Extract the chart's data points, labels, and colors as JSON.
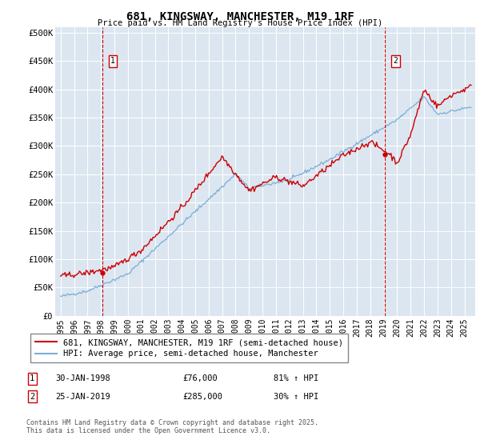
{
  "title": "681, KINGSWAY, MANCHESTER, M19 1RF",
  "subtitle": "Price paid vs. HM Land Registry's House Price Index (HPI)",
  "hpi_color": "#7aaed6",
  "price_color": "#cc0000",
  "bg_color": "#dce6f1",
  "ylim": [
    0,
    500000
  ],
  "yticks": [
    0,
    50000,
    100000,
    150000,
    200000,
    250000,
    300000,
    350000,
    400000,
    450000,
    500000
  ],
  "ytick_labels": [
    "£0",
    "£50K",
    "£100K",
    "£150K",
    "£200K",
    "£250K",
    "£300K",
    "£350K",
    "£400K",
    "£450K",
    "£500K"
  ],
  "xlabel_years": [
    "1995",
    "1996",
    "1997",
    "1998",
    "1999",
    "2000",
    "2001",
    "2002",
    "2003",
    "2004",
    "2005",
    "2006",
    "2007",
    "2008",
    "2009",
    "2010",
    "2011",
    "2012",
    "2013",
    "2014",
    "2015",
    "2016",
    "2017",
    "2018",
    "2019",
    "2020",
    "2021",
    "2022",
    "2023",
    "2024",
    "2025"
  ],
  "legend_line1": "681, KINGSWAY, MANCHESTER, M19 1RF (semi-detached house)",
  "legend_line2": "HPI: Average price, semi-detached house, Manchester",
  "annotation1_date": "30-JAN-1998",
  "annotation1_price": "£76,000",
  "annotation1_hpi": "81% ↑ HPI",
  "annotation2_date": "25-JAN-2019",
  "annotation2_price": "£285,000",
  "annotation2_hpi": "30% ↑ HPI",
  "footer": "Contains HM Land Registry data © Crown copyright and database right 2025.\nThis data is licensed under the Open Government Licence v3.0.",
  "marker1_x": 1998.08,
  "marker1_y": 76000,
  "marker2_x": 2019.07,
  "marker2_y": 285000,
  "xlim_left": 1994.6,
  "xlim_right": 2025.8
}
